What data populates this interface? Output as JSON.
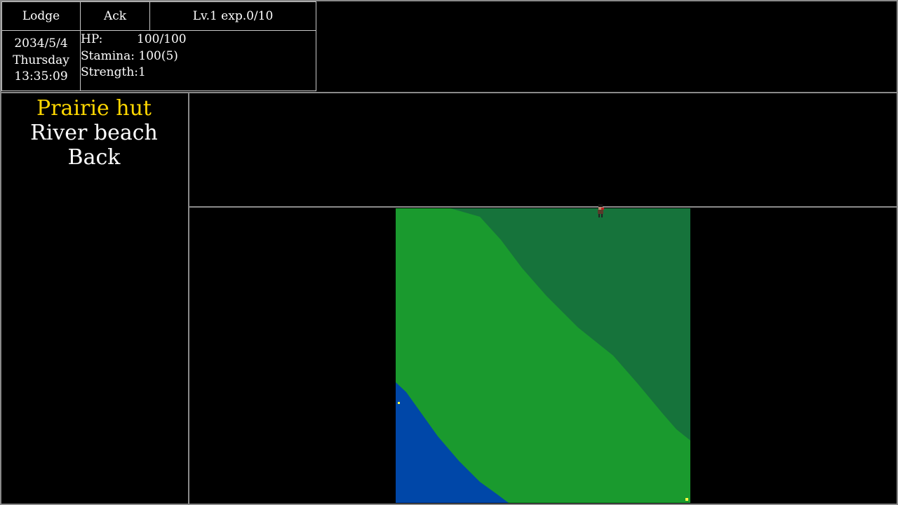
{
  "header": {
    "location": "Lodge",
    "date": "2034/5/4",
    "weekday": "Thursday",
    "time": "13:35:09",
    "character_name": "Ack",
    "level_exp": "Lv.1 exp.0/10",
    "stats": [
      {
        "label": "HP:",
        "value": "100/100"
      },
      {
        "label": "Stamina:",
        "value": "100(5)"
      },
      {
        "label": "Strength:",
        "value": "1"
      }
    ]
  },
  "menu": {
    "items": [
      {
        "label": "Prairie hut",
        "selected": true
      },
      {
        "label": "River beach",
        "selected": false
      },
      {
        "label": "Back",
        "selected": false
      }
    ],
    "selected_color": "#ffd700"
  },
  "map": {
    "colors": {
      "grass": "#1a9a2e",
      "forest": "#16733b",
      "water": "#0047a8",
      "marker": "#ffff40"
    },
    "icons": [
      "player-character-sprite",
      "item-marker"
    ]
  }
}
